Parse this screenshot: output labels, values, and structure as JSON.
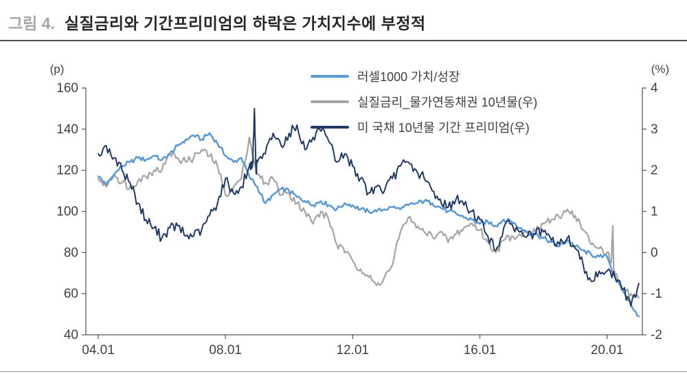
{
  "header": {
    "figure_label": "그림 4.",
    "title": "실질금리와 기간프리미엄의 하락은 가치지수에 부정적"
  },
  "chart_data": {
    "type": "line",
    "title": "실질금리와 기간프리미엄의 하락은 가치지수에 부정적",
    "grid": false,
    "legend_position": "top-center-inside",
    "left_axis": {
      "unit": "(p)",
      "min": 40,
      "max": 160,
      "ticks": [
        160,
        140,
        120,
        100,
        80,
        60,
        40
      ]
    },
    "right_axis": {
      "unit": "(%)",
      "min": -2,
      "max": 4,
      "ticks": [
        4,
        3,
        2,
        1,
        0,
        -1,
        -2
      ]
    },
    "x_axis": {
      "min": 2003.61,
      "max": 2021.11,
      "tick_labels": [
        "04.01",
        "08.01",
        "12.01",
        "16.01",
        "20.01"
      ],
      "tick_years": [
        2004,
        2008,
        2012,
        2016,
        2020
      ]
    },
    "series": [
      {
        "name": "러셀1000 가치/성장",
        "axis": "left",
        "color": "#5b9bd5",
        "x0": 2004,
        "dx": 0.25,
        "values": [
          117,
          113,
          118,
          122,
          124,
          126,
          125,
          127,
          125,
          128,
          132,
          135,
          137,
          135,
          138,
          133,
          127,
          124,
          126,
          117,
          112,
          104,
          108,
          111,
          110,
          107,
          105,
          103,
          105,
          103,
          101,
          104,
          103,
          101,
          100,
          100,
          101,
          102,
          101,
          103,
          104,
          105,
          104,
          102,
          100,
          99,
          97,
          96,
          94,
          95,
          93,
          96,
          95,
          92,
          90,
          89,
          87,
          85,
          83,
          86,
          83,
          81,
          79,
          78,
          78,
          68,
          61,
          55,
          49
        ]
      },
      {
        "name": "실질금리_물가연동채권 10년물(우)",
        "axis": "right",
        "color": "#a6a6a6",
        "x0": 2004,
        "dx": 0.25,
        "values": [
          1.8,
          1.6,
          1.9,
          1.7,
          1.6,
          1.75,
          1.85,
          2.0,
          2.0,
          2.4,
          2.3,
          2.2,
          2.3,
          2.5,
          2.35,
          2.1,
          1.4,
          1.6,
          1.8,
          2.8,
          1.9,
          1.7,
          1.8,
          1.4,
          1.45,
          1.2,
          1.0,
          0.7,
          1.0,
          0.8,
          0.2,
          0.0,
          -0.2,
          -0.4,
          -0.6,
          -0.8,
          -0.6,
          -0.3,
          0.5,
          0.85,
          0.6,
          0.5,
          0.4,
          0.5,
          0.25,
          0.45,
          0.6,
          0.7,
          0.55,
          0.25,
          0.0,
          0.3,
          0.4,
          0.45,
          0.5,
          0.5,
          0.7,
          0.8,
          0.85,
          1.05,
          0.9,
          0.55,
          0.2,
          0.1,
          0.0,
          -0.55,
          -0.9,
          -1.0,
          -1.1
        ],
        "spikes": [
          [
            2020.13,
            -0.25
          ],
          [
            2020.18,
            0.65
          ],
          [
            2020.21,
            -0.5
          ]
        ]
      },
      {
        "name": "미 국채 10년물 기간 프리미엄(우)",
        "axis": "right",
        "color": "#1f3864",
        "x0": 2004,
        "dx": 0.25,
        "values": [
          2.4,
          2.6,
          2.3,
          2.0,
          1.7,
          1.2,
          0.8,
          0.6,
          0.35,
          0.6,
          0.65,
          0.4,
          0.4,
          0.55,
          0.9,
          1.2,
          1.8,
          1.45,
          1.6,
          2.1,
          2.2,
          2.4,
          2.9,
          2.6,
          2.9,
          3.1,
          2.5,
          2.8,
          2.95,
          2.7,
          2.2,
          2.4,
          2.1,
          1.8,
          1.45,
          1.6,
          1.5,
          1.8,
          2.1,
          2.2,
          2.0,
          1.8,
          1.5,
          1.3,
          1.1,
          1.3,
          1.15,
          1.0,
          0.8,
          0.4,
          0.05,
          0.6,
          0.7,
          0.5,
          0.4,
          0.45,
          0.5,
          0.3,
          0.2,
          0.35,
          0.1,
          -0.3,
          -0.7,
          -0.45,
          -0.45,
          -0.6,
          -0.9,
          -1.3,
          -0.75
        ],
        "spikes": [
          [
            2008.86,
            2.2
          ],
          [
            2008.91,
            3.5
          ],
          [
            2008.96,
            2.0
          ]
        ]
      }
    ]
  }
}
